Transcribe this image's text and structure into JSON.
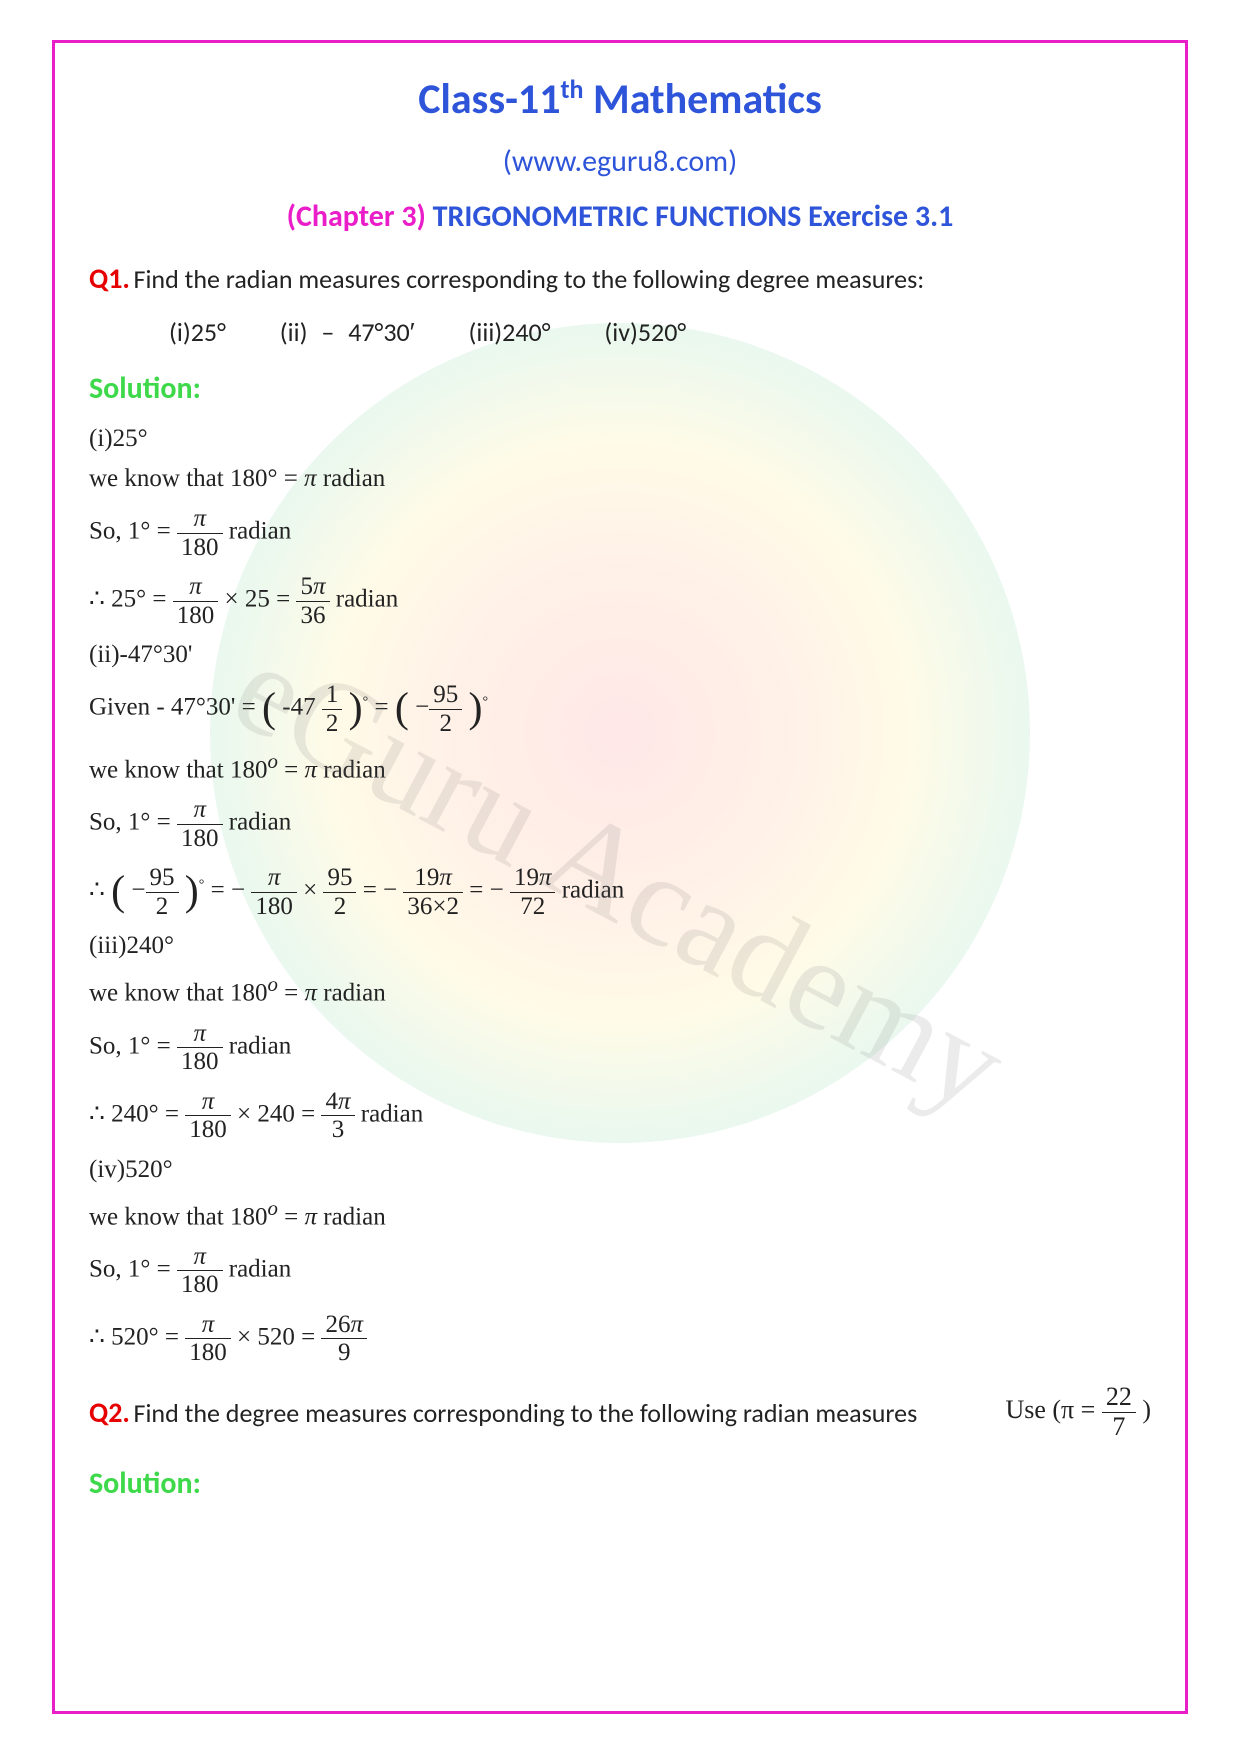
{
  "colors": {
    "border": "#e91ec9",
    "title": "#2e54d9",
    "question": "#e60000",
    "solution": "#3dd94a",
    "body": "#222222"
  },
  "header": {
    "title_prefix": "Class-11",
    "title_sup": "th",
    "title_suffix": " Mathematics",
    "url": "(www.eguru8.com)",
    "chapter_label": "(Chapter 3)",
    "chapter_rest": " TRIGONOMETRIC FUNCTIONS Exercise 3.1"
  },
  "watermark": "eGuru Academy",
  "q1": {
    "label": "Q1.",
    "text": " Find the radian measures corresponding to the following degree measures:",
    "options": {
      "i": "(i)25°",
      "ii": "(ii) – 47°30′",
      "iii": "(iii)240°",
      "iv": "(iv)520°"
    }
  },
  "solution_label": "Solution:",
  "sol": {
    "i_head": "(i)25°",
    "know": "we know that 180° = π radian",
    "know_o": "we know that 180º = π radian",
    "so_prefix": "So, 1° = ",
    "so_suffix": " radian",
    "therefore_25": "∴ 25° = ",
    "times25": " × 25 = ",
    "radian": "radian",
    "ii_head": "(ii)-47°30'",
    "given_ii": "Given - 47°30' = ",
    "minus47": "-47",
    "iii_head": "(iii)240°",
    "therefore_240": "∴ 240° = ",
    "times240": " × 240 = ",
    "iv_head": "(iv)520°",
    "therefore_520": "∴ 520° = ",
    "times520": " × 520 = ",
    "therefore_95": "∴ ",
    "minus": " − ",
    "eq": " = "
  },
  "fracs": {
    "pi": "π",
    "180": "180",
    "5pi": "5π",
    "36": "36",
    "1": "1",
    "2": "2",
    "95": "95",
    "19pi": "19π",
    "36x2": "36×2",
    "72": "72",
    "4pi": "4π",
    "3": "3",
    "26pi": "26π",
    "9": "9",
    "22": "22",
    "7": "7"
  },
  "q2": {
    "label": "Q2.",
    "text": " Find the degree measures corresponding to the following radian measures",
    "use": "Use (π = ",
    "close": ")"
  }
}
